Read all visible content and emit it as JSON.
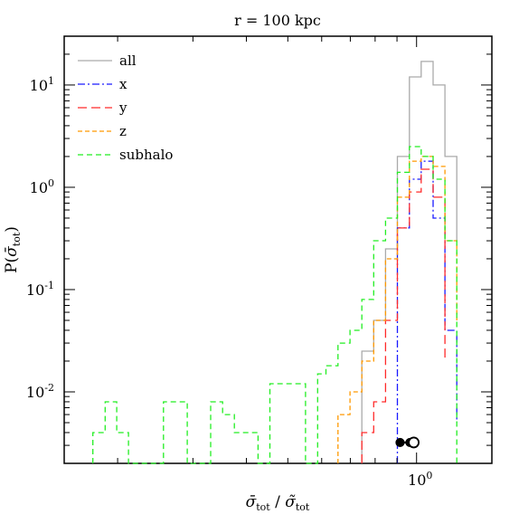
{
  "chart_data": {
    "type": "line",
    "title": "r = 100 kpc",
    "xlabel": "σ̄tot / σ̃tot",
    "ylabel": "P(σ̄tot)",
    "x_scale": "log",
    "y_scale": "log",
    "xlim": [
      0.15,
      1.5
    ],
    "ylim": [
      0.002,
      30
    ],
    "x_tick_labels": [
      {
        "value": 1,
        "base": "10",
        "exp": "0"
      }
    ],
    "y_tick_labels": [
      {
        "value": 10,
        "base": "10",
        "exp": "1"
      },
      {
        "value": 1,
        "base": "10",
        "exp": "0"
      },
      {
        "value": 0.1,
        "base": "10",
        "exp": "-1"
      },
      {
        "value": 0.01,
        "base": "10",
        "exp": "-2"
      }
    ],
    "grid": false,
    "legend_position": "top-left",
    "series": [
      {
        "name": "all",
        "color": "#aaaaaa",
        "dash": "",
        "edges": [
          0.745,
          0.794,
          0.846,
          0.902,
          0.962,
          1.025,
          1.093,
          1.165,
          1.242
        ],
        "values": [
          0.025,
          0.05,
          0.25,
          2.0,
          12.0,
          17.0,
          10.0,
          2.0,
          0.3
        ]
      },
      {
        "name": "x",
        "color": "#1a1aff",
        "dash": "8,3,2,3",
        "edges": [
          0.902,
          0.962,
          1.025,
          1.093,
          1.165,
          1.242
        ],
        "values": [
          0.4,
          1.2,
          1.8,
          0.5,
          0.04,
          0.005
        ]
      },
      {
        "name": "y",
        "color": "#ff2a2a",
        "dash": "10,5",
        "edges": [
          0.745,
          0.794,
          0.846,
          0.902,
          0.962,
          1.025,
          1.093,
          1.165
        ],
        "values": [
          0.004,
          0.008,
          0.05,
          0.4,
          0.9,
          1.5,
          0.8,
          0.02
        ]
      },
      {
        "name": "z",
        "color": "#ff9900",
        "dash": "5,3",
        "edges": [
          0.655,
          0.699,
          0.745,
          0.794,
          0.846,
          0.902,
          0.962,
          1.025,
          1.093,
          1.165,
          1.242
        ],
        "values": [
          0.006,
          0.01,
          0.02,
          0.05,
          0.2,
          0.8,
          1.8,
          2.0,
          1.6,
          0.3,
          0.05
        ]
      },
      {
        "name": "subhalo",
        "color": "#22ee22",
        "dash": "6,4",
        "edges": [
          0.175,
          0.187,
          0.199,
          0.212,
          0.226,
          0.24,
          0.256,
          0.273,
          0.291,
          0.31,
          0.33,
          0.352,
          0.375,
          0.4,
          0.426,
          0.454,
          0.484,
          0.516,
          0.55,
          0.587,
          0.614,
          0.655,
          0.699,
          0.745,
          0.794,
          0.846,
          0.902,
          0.962,
          1.025,
          1.093,
          1.165,
          1.242
        ],
        "values": [
          0.004,
          0.008,
          0.004,
          0.002,
          0.002,
          0.002,
          0.008,
          0.008,
          0.002,
          0.002,
          0.008,
          0.006,
          0.004,
          0.004,
          0.002,
          0.012,
          0.012,
          0.012,
          0.002,
          0.015,
          0.018,
          0.03,
          0.04,
          0.08,
          0.3,
          0.5,
          1.4,
          2.5,
          2.0,
          1.2,
          0.3
        ]
      }
    ],
    "markers": [
      {
        "x": 0.915,
        "y": 0.0032,
        "style": "filled-circle"
      },
      {
        "x": 0.965,
        "y": 0.0032,
        "style": "filled-circle"
      },
      {
        "x": 0.985,
        "y": 0.0032,
        "style": "open-circle"
      }
    ]
  }
}
